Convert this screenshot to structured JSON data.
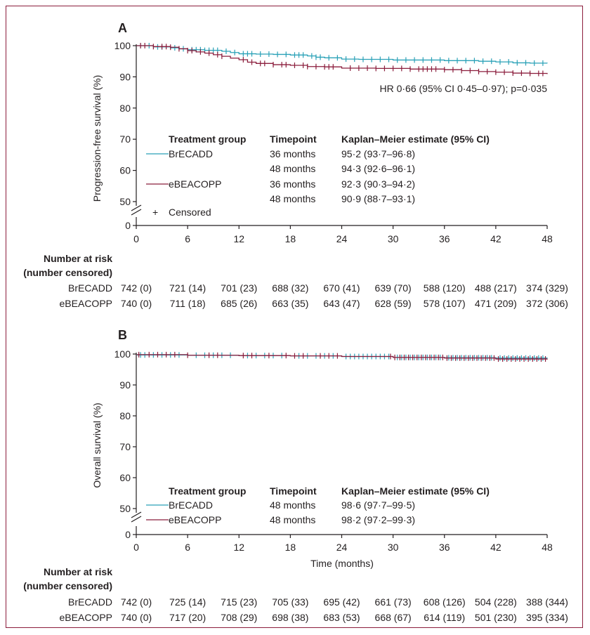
{
  "figure": {
    "colors": {
      "BrECADD": "#2aa1b7",
      "eBEACOPP": "#8b1d3c",
      "frame": "#8b1d3c",
      "axis": "#231f20"
    }
  },
  "chart_data": [
    {
      "panel": "A",
      "type": "line",
      "ylabel": "Progression-free survival (%)",
      "xlabel": "",
      "xticks": [
        0,
        6,
        12,
        18,
        24,
        30,
        36,
        42,
        48
      ],
      "yticks": [
        0,
        50,
        60,
        70,
        80,
        90,
        100
      ],
      "xlim": [
        0,
        48
      ],
      "ylim_broken": [
        50,
        100
      ],
      "annotation": "HR 0·66 (95% CI 0·45–0·97); p=0·035",
      "series": [
        {
          "name": "BrECADD",
          "x": [
            0,
            2,
            4,
            5,
            6,
            8,
            10,
            11,
            12,
            14,
            16,
            18,
            20,
            21,
            22,
            24,
            26,
            30,
            36,
            40,
            42,
            44,
            46,
            48
          ],
          "y": [
            100,
            99.6,
            99.3,
            99,
            98.7,
            98.5,
            98.2,
            97.8,
            97.4,
            97.3,
            97.2,
            97,
            96.7,
            96.3,
            96.1,
            95.7,
            95.6,
            95.4,
            95.2,
            95,
            94.8,
            94.5,
            94.4,
            94.3
          ],
          "censored_x": [
            0.5,
            1.5,
            2.5,
            3,
            4.5,
            5.5,
            6.5,
            7,
            7.5,
            8,
            8.5,
            9,
            9.5,
            10.5,
            11.5,
            12.5,
            13,
            13.5,
            14.5,
            15.5,
            16.5,
            17.5,
            18.5,
            19,
            19.5,
            20.5,
            21,
            21.5,
            22.5,
            23.5,
            24.5,
            25.5,
            26.5,
            27.5,
            28.5,
            29.5,
            30.5,
            31.5,
            32.5,
            33.5,
            34.5,
            35.5,
            36.5,
            37.5,
            38.5,
            39.5,
            40.5,
            41.5,
            42.5,
            43.5,
            44.5,
            45.5,
            46.5,
            47.5
          ]
        },
        {
          "name": "eBEACOPP",
          "x": [
            0,
            2,
            4,
            5,
            6,
            7,
            8,
            9,
            10,
            11,
            12,
            13,
            14,
            16,
            18,
            20,
            22,
            24,
            26,
            28,
            30,
            32,
            36,
            38,
            40,
            42,
            44,
            46,
            48
          ],
          "y": [
            100,
            99.7,
            99.5,
            99,
            98.4,
            98,
            97.6,
            97.1,
            96.6,
            96,
            95.5,
            94.7,
            94.3,
            93.9,
            93.7,
            93.3,
            93.2,
            92.8,
            92.8,
            92.7,
            92.7,
            92.5,
            92.3,
            92,
            91.7,
            91.5,
            91.2,
            91.1,
            90.9
          ],
          "censored_x": [
            0.5,
            1,
            2,
            3,
            3.5,
            4,
            5,
            6,
            6.5,
            7.5,
            8.5,
            9.5,
            10,
            12.5,
            13.5,
            14.5,
            15,
            16,
            17,
            17.5,
            18.5,
            19.5,
            20,
            21,
            22,
            22.5,
            23,
            25,
            26,
            27,
            28,
            29,
            30,
            31,
            32,
            33,
            33.5,
            34,
            34.5,
            35,
            36,
            37,
            38,
            39,
            40,
            41,
            42,
            43,
            44,
            45,
            46,
            47,
            47.5
          ]
        }
      ],
      "legend": {
        "headers": [
          "Treatment group",
          "Timepoint",
          "Kaplan–Meier estimate (95% CI)"
        ],
        "rows": [
          {
            "group": "BrECADD",
            "timepoint": "36 months",
            "estimate": "95·2 (93·7–96·8)"
          },
          {
            "group": "",
            "timepoint": "48 months",
            "estimate": "94·3 (92·6–96·1)"
          },
          {
            "group": "eBEACOPP",
            "timepoint": "36 months",
            "estimate": "92·3 (90·3–94·2)"
          },
          {
            "group": "",
            "timepoint": "48 months",
            "estimate": "90·9 (88·7–93·1)"
          }
        ],
        "censored_label": "Censored",
        "censored_symbol": "+"
      },
      "risk_table": {
        "title_line1": "Number at risk",
        "title_line2": "(number censored)",
        "rows": [
          {
            "group": "BrECADD",
            "values": [
              "742 (0)",
              "721 (14)",
              "701 (23)",
              "688 (32)",
              "670 (41)",
              "639 (70)",
              "588 (120)",
              "488 (217)",
              "374 (329)"
            ]
          },
          {
            "group": "eBEACOPP",
            "values": [
              "740 (0)",
              "711 (18)",
              "685 (26)",
              "663 (35)",
              "643 (47)",
              "628 (59)",
              "578 (107)",
              "471 (209)",
              "372 (306)"
            ]
          }
        ]
      }
    },
    {
      "panel": "B",
      "type": "line",
      "ylabel": "Overall survival (%)",
      "xlabel": "Time (months)",
      "xticks": [
        0,
        6,
        12,
        18,
        24,
        30,
        36,
        42,
        48
      ],
      "yticks": [
        0,
        50,
        60,
        70,
        80,
        90,
        100
      ],
      "xlim": [
        0,
        48
      ],
      "ylim_broken": [
        50,
        100
      ],
      "series": [
        {
          "name": "BrECADD",
          "x": [
            0,
            6,
            12,
            18,
            24,
            30,
            36,
            42,
            48
          ],
          "y": [
            99.7,
            99.6,
            99.5,
            99.4,
            99.2,
            98.9,
            98.8,
            98.7,
            98.6
          ],
          "censored_x": [
            0.5,
            1,
            2,
            3,
            4,
            5,
            7,
            8,
            9,
            10,
            11,
            13,
            14,
            15,
            16,
            17,
            19,
            20,
            21,
            22,
            23,
            24.5,
            25,
            25.5,
            26,
            26.5,
            27,
            27.5,
            28,
            28.5,
            29,
            29.5,
            30.5,
            31,
            31.5,
            32,
            32.5,
            33,
            33.5,
            34,
            34.5,
            35,
            35.5,
            36.5,
            37,
            37.5,
            38,
            38.5,
            39,
            39.5,
            40,
            40.5,
            41,
            41.5,
            42.5,
            43,
            43.5,
            44,
            44.5,
            45,
            45.5,
            46,
            46.5,
            47,
            47.5
          ]
        },
        {
          "name": "eBEACOPP",
          "x": [
            0,
            6,
            12,
            18,
            24,
            30,
            36,
            42,
            48
          ],
          "y": [
            99.8,
            99.6,
            99.5,
            99.4,
            99.2,
            98.9,
            98.7,
            98.4,
            98.2
          ],
          "censored_x": [
            0.3,
            1.5,
            2.5,
            3.5,
            4.5,
            6,
            8.5,
            9.5,
            12.5,
            13.5,
            15.5,
            17.5,
            18.5,
            19.5,
            21.5,
            22.5,
            23.5,
            29.7,
            30.2,
            30.8,
            31.3,
            31.8,
            32.3,
            32.8,
            33.3,
            33.8,
            34.3,
            34.8,
            35.3,
            35.8,
            36.3,
            36.8,
            37.3,
            37.8,
            38.3,
            38.8,
            39.3,
            39.8,
            40.3,
            40.8,
            41.3,
            41.8,
            42.3,
            42.8,
            43.3,
            43.8,
            44.3,
            44.8,
            45.3,
            45.8,
            46.3,
            46.8,
            47.3,
            47.8
          ]
        }
      ],
      "legend": {
        "headers": [
          "Treatment group",
          "Timepoint",
          "Kaplan–Meier estimate (95% CI)"
        ],
        "rows": [
          {
            "group": "BrECADD",
            "timepoint": "48 months",
            "estimate": "98·6 (97·7–99·5)"
          },
          {
            "group": "eBEACOPP",
            "timepoint": "48 months",
            "estimate": "98·2 (97·2–99·3)"
          }
        ]
      },
      "risk_table": {
        "title_line1": "Number at risk",
        "title_line2": "(number censored)",
        "rows": [
          {
            "group": "BrECADD",
            "values": [
              "742 (0)",
              "725 (14)",
              "715 (23)",
              "705 (33)",
              "695 (42)",
              "661 (73)",
              "608 (126)",
              "504 (228)",
              "388 (344)"
            ]
          },
          {
            "group": "eBEACOPP",
            "values": [
              "740 (0)",
              "717 (20)",
              "708 (29)",
              "698 (38)",
              "683 (53)",
              "668 (67)",
              "614 (119)",
              "501 (230)",
              "395 (334)"
            ]
          }
        ]
      }
    }
  ]
}
